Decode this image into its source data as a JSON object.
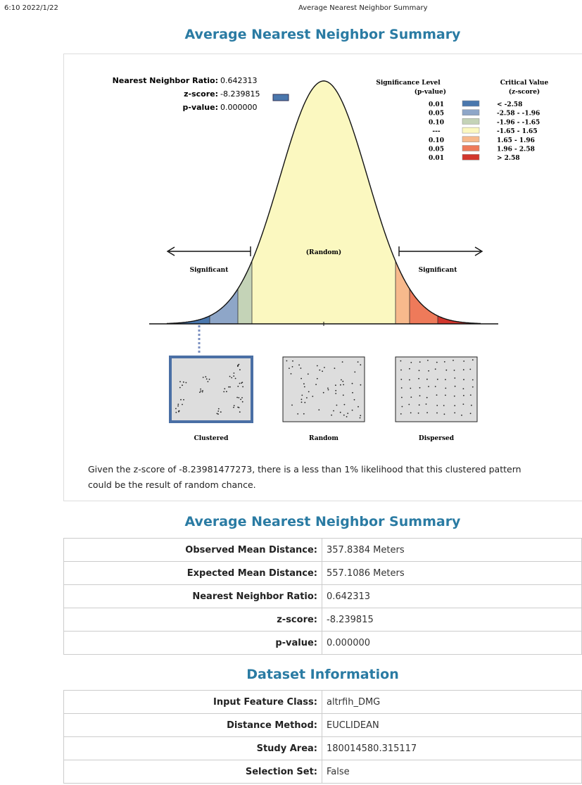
{
  "header": {
    "timestamp": "6:10 2022/1/22",
    "page_title": "Average Nearest Neighbor Summary"
  },
  "graphic": {
    "title": "Average Nearest Neighbor Summary",
    "stats": [
      {
        "label": "Nearest Neighbor Ratio:",
        "value": "0.642313"
      },
      {
        "label": "z-score:",
        "value": "-8.239815"
      },
      {
        "label": "p-value:",
        "value": "0.000000"
      }
    ],
    "legend": {
      "significance_header": "Significance Level",
      "p_header": "(p-value)",
      "critical_header": "Critical Value",
      "z_header": "(z-score)",
      "rows": [
        {
          "p": "0.01",
          "z": "< -2.58",
          "color": "#4a77ad"
        },
        {
          "p": "0.05",
          "z": "-2.58 - -1.96",
          "color": "#8ea6c8"
        },
        {
          "p": "0.10",
          "z": "-1.96 - -1.65",
          "color": "#c4d3b7"
        },
        {
          "p": "---",
          "z": "-1.65 - 1.65",
          "color": "#fbf8c0"
        },
        {
          "p": "0.10",
          "z": "1.65 - 1.96",
          "color": "#f7b98c"
        },
        {
          "p": "0.05",
          "z": "1.96 - 2.58",
          "color": "#ee7a5a"
        },
        {
          "p": "0.01",
          "z": "> 2.58",
          "color": "#d2362d"
        }
      ]
    },
    "random_label": "(Random)",
    "significant_left": "Significant",
    "significant_right": "Significant",
    "patterns": [
      "Clustered",
      "Random",
      "Dispersed"
    ],
    "conclusion": "Given the z-score of -8.23981477273, there is a less than 1% likelihood that this clustered pattern could be the result of random chance."
  },
  "summary": {
    "title": "Average Nearest Neighbor Summary",
    "rows": [
      [
        "Observed Mean Distance:",
        "357.8384 Meters"
      ],
      [
        "Expected Mean Distance:",
        "557.1086 Meters"
      ],
      [
        "Nearest Neighbor Ratio:",
        "0.642313"
      ],
      [
        "z-score:",
        "-8.239815"
      ],
      [
        "p-value:",
        "0.000000"
      ]
    ]
  },
  "dataset": {
    "title": "Dataset Information",
    "rows": [
      [
        "Input Feature Class:",
        "altrfih_DMG"
      ],
      [
        "Distance Method:",
        "EUCLIDEAN"
      ],
      [
        "Study Area:",
        "180014580.315117"
      ],
      [
        "Selection Set:",
        "False"
      ]
    ]
  }
}
